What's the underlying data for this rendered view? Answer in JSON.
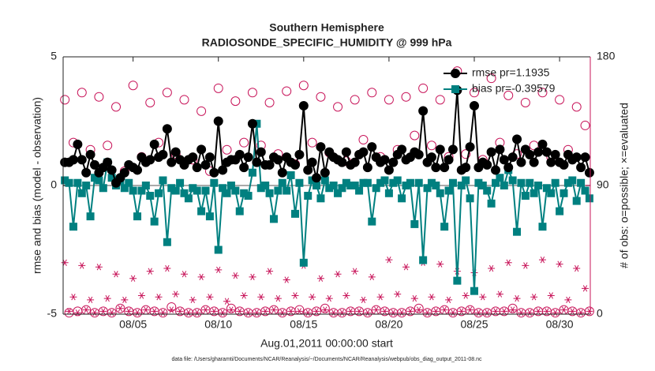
{
  "chart_data": {
    "type": "line",
    "title": "Southern Hemisphere",
    "subtitle": "RADIOSONDE_SPECIFIC_HUMIDITY @ 999 hPa",
    "xlabel": "Aug.01,2011 00:00:00 start",
    "ylabel": "rmse and bias (model - observation)",
    "y2label": "# of obs: o=possible; ×=evaluated",
    "footnote": "data file: /Users/gharamti/Documents/NCAR/Reanalysis/~/Documents/NCAR/Reanalysis/webpub/obs_diag_output_2011-08.nc",
    "xlim": [
      0.9,
      31.8
    ],
    "xticks": [
      {
        "value": 5,
        "label": "08/05"
      },
      {
        "value": 10,
        "label": "08/10"
      },
      {
        "value": 15,
        "label": "08/15"
      },
      {
        "value": 20,
        "label": "08/20"
      },
      {
        "value": 25,
        "label": "08/25"
      },
      {
        "value": 30,
        "label": "08/30"
      }
    ],
    "ylim": [
      -5,
      5
    ],
    "yticks": [
      -5,
      0,
      5
    ],
    "y2lim": [
      0,
      180
    ],
    "y2ticks": [
      0,
      90,
      180
    ],
    "y2color": "#c8155a",
    "zero_line_color": "#aaaaaa",
    "legend": "upper right",
    "x": [
      1,
      1.25,
      1.5,
      1.75,
      2,
      2.25,
      2.5,
      2.75,
      3,
      3.25,
      3.5,
      3.75,
      4,
      4.25,
      4.5,
      4.75,
      5,
      5.25,
      5.5,
      5.75,
      6,
      6.25,
      6.5,
      6.75,
      7,
      7.25,
      7.5,
      7.75,
      8,
      8.25,
      8.5,
      8.75,
      9,
      9.25,
      9.5,
      9.75,
      10,
      10.25,
      10.5,
      10.75,
      11,
      11.25,
      11.5,
      11.75,
      12,
      12.25,
      12.5,
      12.75,
      13,
      13.25,
      13.5,
      13.75,
      14,
      14.25,
      14.5,
      14.75,
      15,
      15.25,
      15.5,
      15.75,
      16,
      16.25,
      16.5,
      16.75,
      17,
      17.25,
      17.5,
      17.75,
      18,
      18.25,
      18.5,
      18.75,
      19,
      19.25,
      19.5,
      19.75,
      20,
      20.25,
      20.5,
      20.75,
      21,
      21.25,
      21.5,
      21.75,
      22,
      22.25,
      22.5,
      22.75,
      23,
      23.25,
      23.5,
      23.75,
      24,
      24.25,
      24.5,
      24.75,
      25,
      25.25,
      25.5,
      25.75,
      26,
      26.25,
      26.5,
      26.75,
      27,
      27.25,
      27.5,
      27.75,
      28,
      28.25,
      28.5,
      28.75,
      29,
      29.25,
      29.5,
      29.75,
      30,
      30.25,
      30.5,
      30.75,
      31,
      31.25,
      31.5,
      31.75
    ],
    "series": [
      {
        "name": "rmse pr=1.1935",
        "color": "#000000",
        "marker": "circle",
        "values": [
          0.9,
          0.9,
          1.0,
          1.6,
          1.0,
          0.5,
          1.2,
          0.8,
          0.5,
          0.7,
          0.9,
          0.6,
          0.1,
          0.3,
          0.5,
          0.8,
          0.7,
          0.6,
          1.1,
          0.9,
          1.0,
          1.6,
          1.1,
          1.2,
          2.2,
          0.9,
          1.3,
          1.0,
          0.8,
          1.0,
          1.1,
          0.7,
          1.4,
          0.8,
          1.1,
          0.5,
          2.5,
          0.6,
          0.9,
          1.0,
          1.0,
          1.2,
          0.7,
          1.1,
          2.4,
          0.9,
          1.3,
          0.8,
          0.8,
          1.1,
          1.0,
          0.5,
          1.1,
          0.9,
          0.8,
          1.2,
          3.1,
          0.6,
          0.9,
          0.3,
          1.5,
          0.5,
          1.3,
          1.1,
          1.0,
          0.9,
          1.3,
          0.8,
          0.9,
          1.2,
          1.3,
          0.7,
          1.5,
          1.1,
          0.9,
          1.0,
          0.6,
          0.9,
          1.2,
          1.4,
          1.0,
          1.1,
          1.3,
          1.2,
          2.9,
          0.9,
          1.1,
          0.7,
          1.4,
          0.7,
          1.0,
          1.4,
          3.7,
          0.6,
          0.7,
          1.5,
          3.1,
          0.7,
          0.9,
          0.8,
          1.3,
          0.6,
          1.4,
          1.0,
          0.7,
          1.1,
          1.8,
          0.9,
          1.4,
          1.2,
          0.9,
          1.3,
          1.6,
          1.3,
          0.9,
          1.2,
          0.9,
          0.8,
          1.2,
          1.0,
          1.1,
          0.7,
          1.1,
          0.5
        ]
      },
      {
        "name": "bias pr=-0.39579",
        "color": "#008080",
        "marker": "square",
        "values": [
          0.2,
          0.1,
          -1.6,
          0.1,
          -0.3,
          0.0,
          -1.2,
          0.3,
          0.2,
          -0.1,
          0.9,
          0.3,
          0.0,
          0.2,
          -0.1,
          0.1,
          -0.2,
          -1.2,
          -0.2,
          0.0,
          -0.4,
          -1.4,
          -0.3,
          0.2,
          -2.2,
          -0.1,
          -0.2,
          0.1,
          -0.3,
          -0.5,
          -0.1,
          -0.2,
          -1.0,
          -0.2,
          -1.2,
          0.1,
          -2.5,
          -0.1,
          -0.3,
          0.0,
          -0.2,
          -1.0,
          -0.3,
          -0.4,
          0.5,
          2.4,
          -0.1,
          0.0,
          -0.3,
          -1.3,
          -0.2,
          0.1,
          -0.2,
          0.4,
          -1.1,
          0.1,
          -3.0,
          -0.4,
          0.2,
          0.0,
          -0.5,
          0.2,
          -0.1,
          0.0,
          -0.3,
          -0.1,
          0.1,
          0.0,
          0.0,
          -0.2,
          0.1,
          0.1,
          -1.4,
          -0.1,
          0.1,
          0.2,
          -0.3,
          0.1,
          0.2,
          -0.5,
          0.0,
          0.1,
          -1.5,
          0.1,
          -2.9,
          -0.1,
          0.1,
          0.0,
          -0.3,
          -1.6,
          -0.2,
          0.1,
          -3.7,
          0.0,
          0.2,
          -0.5,
          -4.1,
          0.1,
          0.0,
          -0.2,
          -0.7,
          0.1,
          0.3,
          0.0,
          0.6,
          0.2,
          -1.8,
          0.1,
          -0.4,
          0.1,
          -0.3,
          0.0,
          -1.6,
          -0.1,
          -0.3,
          0.1,
          -1.0,
          -0.3,
          0.1,
          0.2,
          -0.6,
          0.1,
          -0.2,
          -0.5
        ]
      },
      {
        "color": "#c8155a",
        "marker": "open-circle",
        "axis": "y2",
        "values": [
          150,
          1,
          120,
          2,
          155,
          3,
          115,
          1,
          152,
          2,
          118,
          1,
          145,
          4,
          100,
          2,
          160,
          1,
          110,
          3,
          148,
          2,
          120,
          1,
          155,
          5,
          112,
          2,
          150,
          1,
          108,
          1,
          142,
          3,
          100,
          2,
          158,
          1,
          115,
          4,
          149,
          2,
          120,
          1,
          155,
          1,
          118,
          2,
          148,
          3,
          112,
          1,
          156,
          2,
          105,
          3,
          160,
          1,
          120,
          2,
          152,
          4,
          113,
          1,
          145,
          1,
          107,
          2,
          150,
          2,
          122,
          1,
          155,
          3,
          110,
          2,
          150,
          1,
          115,
          1,
          152,
          2,
          125,
          4,
          158,
          1,
          118,
          2,
          150,
          3,
          110,
          1,
          170,
          2,
          112,
          3,
          155,
          1,
          108,
          1,
          165,
          2,
          120,
          2,
          153,
          4,
          112,
          1,
          148,
          1,
          118,
          2,
          155,
          2,
          110,
          1,
          150,
          3,
          115,
          2,
          145,
          1,
          132,
          2
        ]
      },
      {
        "color": "#c8155a",
        "marker": "asterisk",
        "axis": "y2",
        "values": [
          36,
          2,
          12,
          1,
          34,
          3,
          10,
          1,
          33,
          2,
          11,
          1,
          28,
          4,
          10,
          2,
          25,
          1,
          13,
          3,
          30,
          2,
          12,
          1,
          32,
          3,
          14,
          2,
          28,
          1,
          10,
          1,
          26,
          3,
          12,
          2,
          31,
          1,
          9,
          3,
          27,
          2,
          13,
          1,
          26,
          1,
          12,
          2,
          30,
          3,
          11,
          1,
          24,
          2,
          13,
          2,
          34,
          1,
          12,
          2,
          25,
          3,
          11,
          1,
          28,
          1,
          13,
          2,
          30,
          2,
          10,
          1,
          26,
          3,
          12,
          2,
          38,
          1,
          14,
          1,
          33,
          2,
          11,
          3,
          36,
          1,
          12,
          2,
          35,
          3,
          10,
          1,
          30,
          2,
          13,
          3,
          29,
          1,
          12,
          1,
          32,
          2,
          14,
          2,
          36,
          3,
          11,
          1,
          34,
          1,
          12,
          2,
          38,
          2,
          13,
          1,
          35,
          3,
          10,
          2,
          32,
          1,
          18,
          2
        ]
      }
    ]
  }
}
